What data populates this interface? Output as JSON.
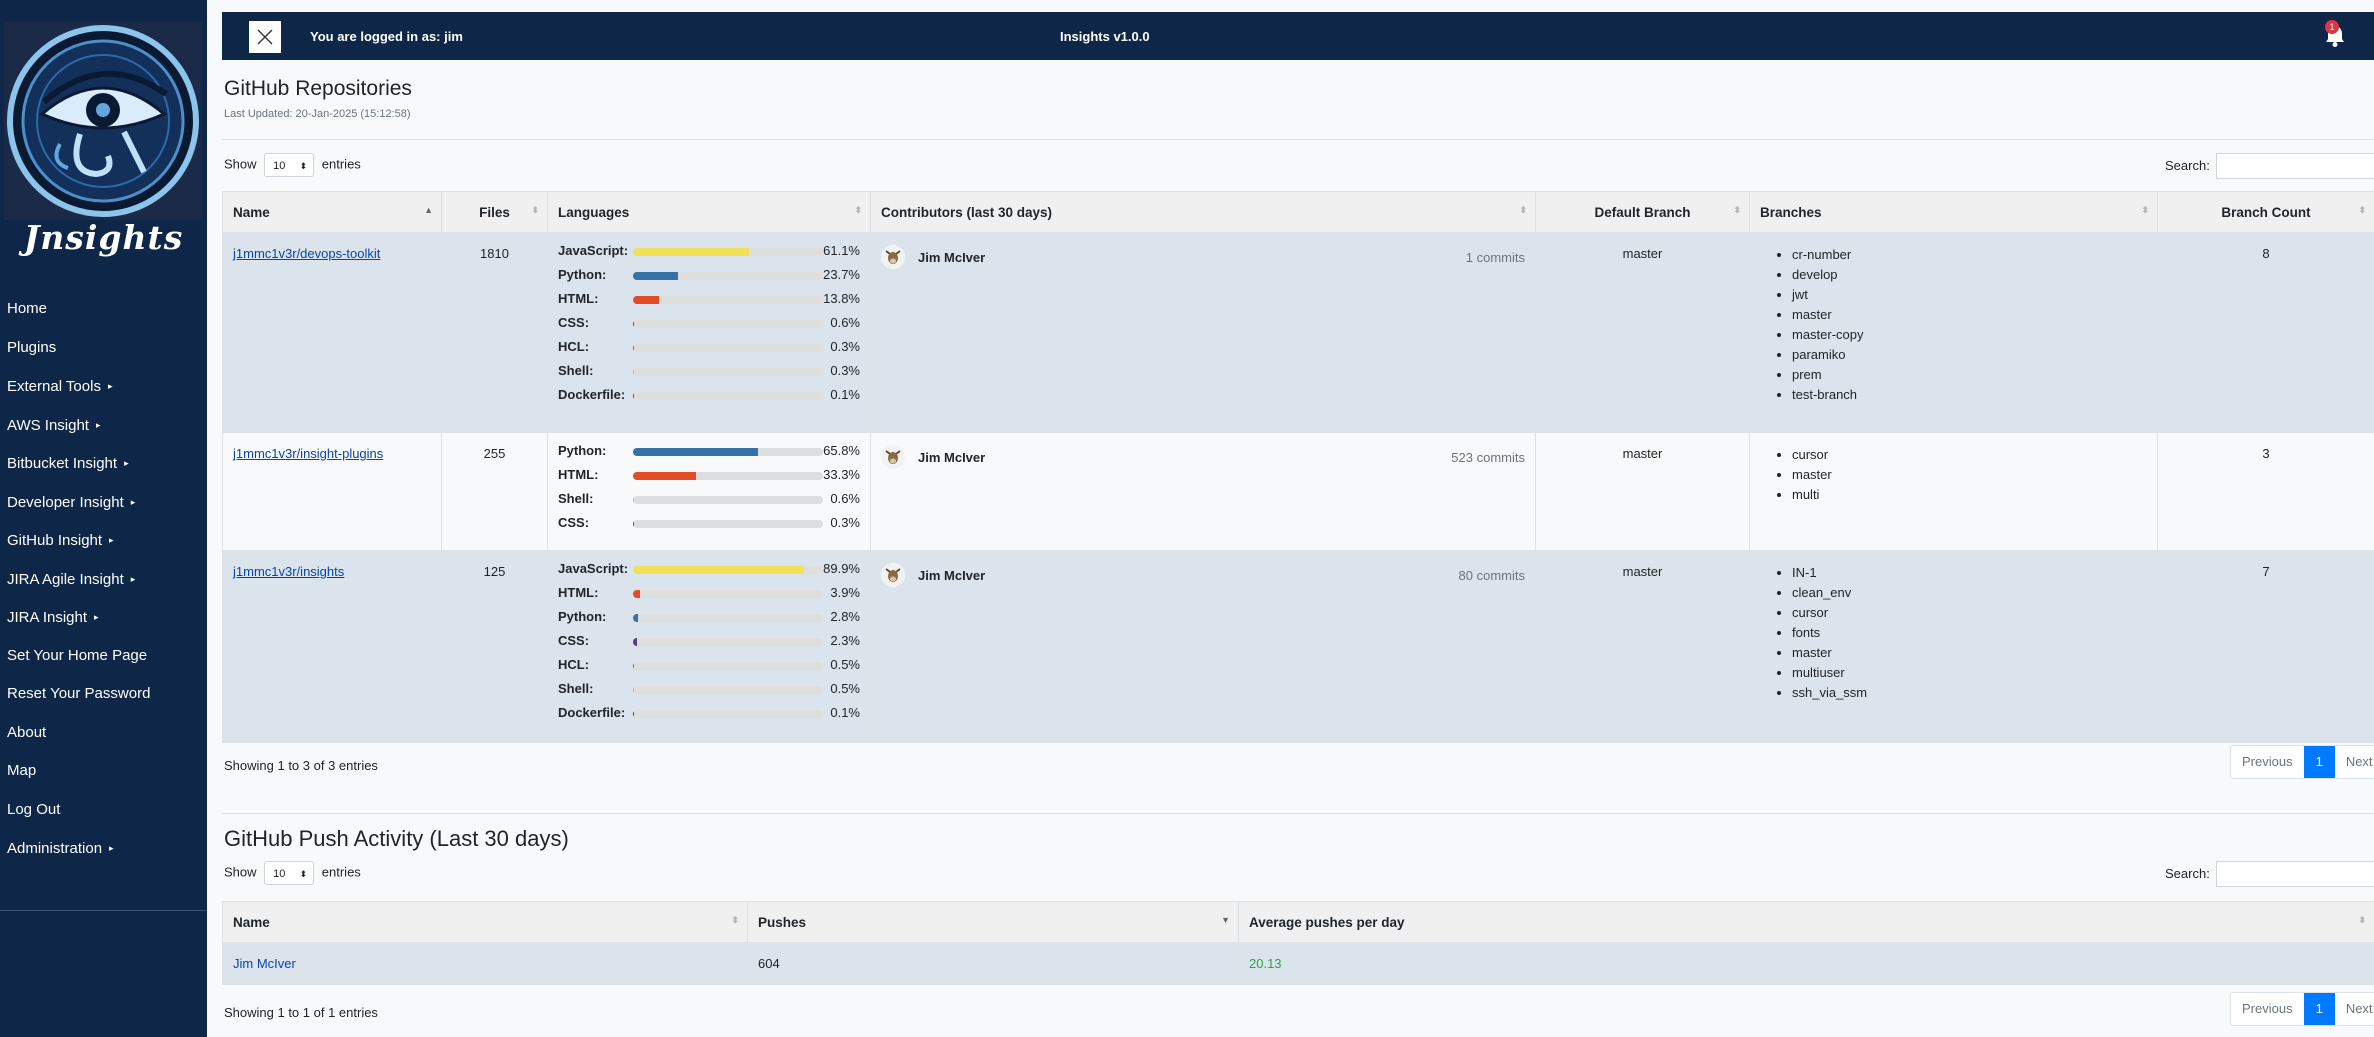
{
  "sidebar": {
    "logo_text": "Jnsights",
    "items": [
      {
        "label": "Home",
        "caret": ""
      },
      {
        "label": "Plugins",
        "caret": ""
      },
      {
        "label": "External Tools",
        "caret": "▸"
      },
      {
        "label": "AWS Insight",
        "caret": "▸"
      },
      {
        "label": "Bitbucket Insight",
        "caret": "▸"
      },
      {
        "label": "Developer Insight",
        "caret": "▸"
      },
      {
        "label": "GitHub Insight",
        "caret": "▸"
      },
      {
        "label": "JIRA Agile Insight",
        "caret": "▸"
      },
      {
        "label": "JIRA Insight",
        "caret": "▸"
      },
      {
        "label": "Set Your Home Page",
        "caret": ""
      },
      {
        "label": "Reset Your Password",
        "caret": ""
      },
      {
        "label": "About",
        "caret": ""
      },
      {
        "label": "Map",
        "caret": ""
      },
      {
        "label": "Log Out",
        "caret": ""
      },
      {
        "label": "Administration",
        "caret": "▸"
      }
    ]
  },
  "topbar": {
    "login_text": "You are logged in as: jim",
    "app_title": "Insights v1.0.0",
    "notification_count": "1"
  },
  "repos": {
    "title": "GitHub Repositories",
    "last_updated": "Last Updated: 20-Jan-2025 (15:12:58)",
    "show_label": "Show",
    "entries_label": "entries",
    "page_length": "10",
    "search_label": "Search:",
    "headers": {
      "name": "Name",
      "files": "Files",
      "languages": "Languages",
      "contributors": "Contributors (last 30 days)",
      "default_branch": "Default Branch",
      "branches": "Branches",
      "branch_count": "Branch Count"
    },
    "rows": [
      {
        "name": "j1mmc1v3r/devops-toolkit",
        "files": "1810",
        "languages": [
          {
            "name": "JavaScript:",
            "pct": "61.1%",
            "value": 61.1,
            "color": "#f1e05a"
          },
          {
            "name": "Python:",
            "pct": "23.7%",
            "value": 23.7,
            "color": "#3572a5"
          },
          {
            "name": "HTML:",
            "pct": "13.8%",
            "value": 13.8,
            "color": "#e34c26"
          },
          {
            "name": "CSS:",
            "pct": "0.6%",
            "value": 0.6,
            "color": "#563d7c"
          },
          {
            "name": "HCL:",
            "pct": "0.3%",
            "value": 0.3,
            "color": "#844fba"
          },
          {
            "name": "Shell:",
            "pct": "0.3%",
            "value": 0.3,
            "color": "#89e051"
          },
          {
            "name": "Dockerfile:",
            "pct": "0.1%",
            "value": 0.1,
            "color": "#384d54"
          }
        ],
        "contributor": "Jim McIver",
        "commits": "1 commits",
        "default_branch": "master",
        "branches": [
          "cr-number",
          "develop",
          "jwt",
          "master",
          "master-copy",
          "paramiko",
          "prem",
          "test-branch"
        ],
        "branch_count": "8"
      },
      {
        "name": "j1mmc1v3r/insight-plugins",
        "files": "255",
        "languages": [
          {
            "name": "Python:",
            "pct": "65.8%",
            "value": 65.8,
            "color": "#3572a5"
          },
          {
            "name": "HTML:",
            "pct": "33.3%",
            "value": 33.3,
            "color": "#e34c26"
          },
          {
            "name": "Shell:",
            "pct": "0.6%",
            "value": 0.6,
            "color": "#89e051"
          },
          {
            "name": "CSS:",
            "pct": "0.3%",
            "value": 0.3,
            "color": "#563d7c"
          }
        ],
        "contributor": "Jim McIver",
        "commits": "523 commits",
        "default_branch": "master",
        "branches": [
          "cursor",
          "master",
          "multi"
        ],
        "branch_count": "3"
      },
      {
        "name": "j1mmc1v3r/insights",
        "files": "125",
        "languages": [
          {
            "name": "JavaScript:",
            "pct": "89.9%",
            "value": 89.9,
            "color": "#f1e05a"
          },
          {
            "name": "HTML:",
            "pct": "3.9%",
            "value": 3.9,
            "color": "#e34c26"
          },
          {
            "name": "Python:",
            "pct": "2.8%",
            "value": 2.8,
            "color": "#3572a5"
          },
          {
            "name": "CSS:",
            "pct": "2.3%",
            "value": 2.3,
            "color": "#563d7c"
          },
          {
            "name": "HCL:",
            "pct": "0.5%",
            "value": 0.5,
            "color": "#844fba"
          },
          {
            "name": "Shell:",
            "pct": "0.5%",
            "value": 0.5,
            "color": "#89e051"
          },
          {
            "name": "Dockerfile:",
            "pct": "0.1%",
            "value": 0.1,
            "color": "#384d54"
          }
        ],
        "contributor": "Jim McIver",
        "commits": "80 commits",
        "default_branch": "master",
        "branches": [
          "IN-1",
          "clean_env",
          "cursor",
          "fonts",
          "master",
          "multiuser",
          "ssh_via_ssm"
        ],
        "branch_count": "7"
      }
    ],
    "showing": "Showing 1 to 3 of 3 entries",
    "pager": {
      "previous": "Previous",
      "page": "1",
      "next": "Next"
    }
  },
  "pushes": {
    "title": "GitHub Push Activity (Last 30 days)",
    "show_label": "Show",
    "entries_label": "entries",
    "page_length": "10",
    "search_label": "Search:",
    "headers": {
      "name": "Name",
      "pushes": "Pushes",
      "avg": "Average pushes per day"
    },
    "rows": [
      {
        "name": "Jim McIver",
        "pushes": "604",
        "avg": "20.13"
      }
    ],
    "showing": "Showing 1 to 1 of 1 entries",
    "pager": {
      "previous": "Previous",
      "page": "1",
      "next": "Next"
    }
  },
  "colors": {
    "sidebar_bg": "#0e2749",
    "link": "#0645ad",
    "active_page": "#007bff",
    "avg_green": "#28a745"
  }
}
